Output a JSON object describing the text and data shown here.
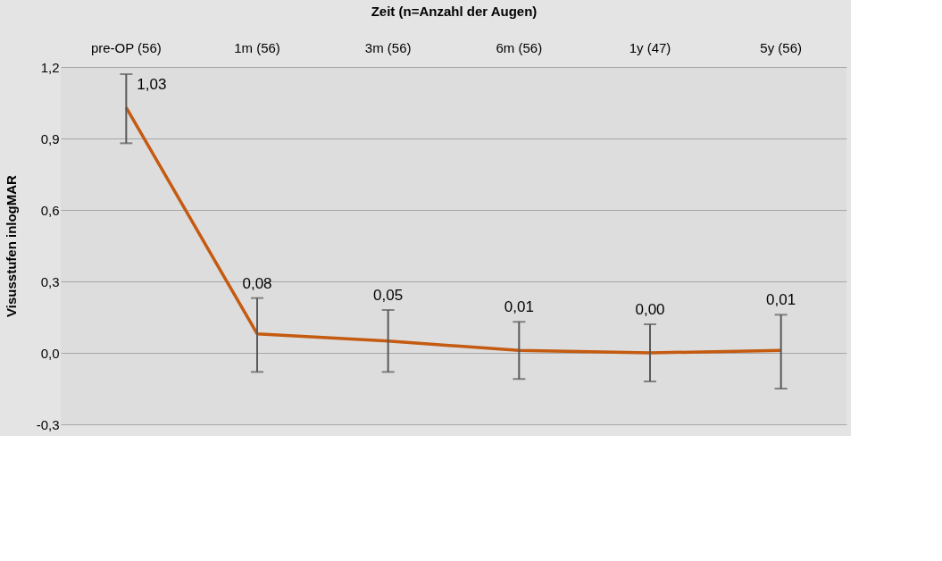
{
  "chart_data": {
    "type": "line",
    "xlabel": "Zeit (n=Anzahl der Augen)",
    "ylabel": "Visusstufen inlogMAR",
    "categories": [
      "pre-OP (56)",
      "1m  (56)",
      "3m  (56)",
      "6m (56)",
      "1y  (47)",
      "5y  (56)"
    ],
    "series": [
      {
        "color": "#c55a11",
        "values": [
          1.03,
          0.08,
          0.05,
          0.01,
          0.0,
          0.01
        ],
        "errors": [
          [
            0.88,
            1.17
          ],
          [
            -0.08,
            0.23
          ],
          [
            -0.08,
            0.18
          ],
          [
            -0.11,
            0.13
          ],
          [
            -0.12,
            0.12
          ],
          [
            -0.15,
            0.16
          ]
        ],
        "value_labels": [
          "1,03",
          "0,08",
          "0,05",
          "0,01",
          "0,00",
          "0,01"
        ]
      }
    ],
    "ylim": [
      -0.3,
      1.2
    ],
    "yticks": [
      {
        "value": -0.3,
        "label": "-0,3"
      },
      {
        "value": 0.0,
        "label": "0,0"
      },
      {
        "value": 0.3,
        "label": "0,3"
      },
      {
        "value": 0.6,
        "label": "0,6"
      },
      {
        "value": 0.9,
        "label": "0,9"
      },
      {
        "value": 1.2,
        "label": "1,2"
      }
    ],
    "grid": "y",
    "marker": "none",
    "line_style": "solid"
  }
}
